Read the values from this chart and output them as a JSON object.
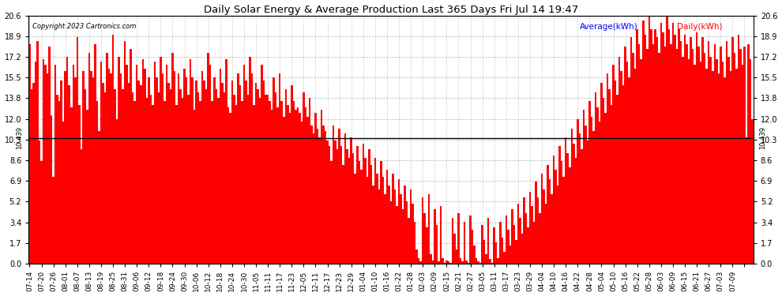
{
  "title": "Daily Solar Energy & Average Production Last 365 Days Fri Jul 14 19:47",
  "copyright": "Copyright 2023 Cartronics.com",
  "average_value": 10.439,
  "average_line_color": "#000000",
  "bar_color": "#ff0000",
  "background_color": "#ffffff",
  "plot_bg_color": "#ffffff",
  "grid_color": "#888888",
  "yticks": [
    0.0,
    1.7,
    3.4,
    5.2,
    6.9,
    8.6,
    10.3,
    12.0,
    13.8,
    15.5,
    17.2,
    18.9,
    20.6
  ],
  "ylim": [
    0.0,
    20.6
  ],
  "legend_avg_label": "Average(kWh)",
  "legend_daily_label": "Daily(kWh)",
  "legend_avg_color": "#0000ff",
  "legend_daily_color": "#ff0000",
  "x_labels": [
    "07-14",
    "07-20",
    "07-26",
    "08-01",
    "08-07",
    "08-13",
    "08-19",
    "08-25",
    "08-31",
    "09-06",
    "09-12",
    "09-18",
    "09-24",
    "09-30",
    "10-06",
    "10-12",
    "10-18",
    "10-24",
    "10-30",
    "11-05",
    "11-11",
    "11-17",
    "11-23",
    "12-05",
    "12-11",
    "12-17",
    "12-23",
    "12-29",
    "01-04",
    "01-10",
    "01-16",
    "01-22",
    "01-28",
    "02-03",
    "02-09",
    "02-15",
    "02-21",
    "02-27",
    "03-05",
    "03-11",
    "03-17",
    "03-23",
    "03-29",
    "04-04",
    "04-10",
    "04-16",
    "04-22",
    "04-28",
    "05-04",
    "05-10",
    "05-16",
    "05-22",
    "05-28",
    "06-03",
    "06-09",
    "06-15",
    "06-21",
    "06-27",
    "07-03",
    "07-09"
  ],
  "num_bars": 365,
  "bar_values": [
    18.2,
    14.5,
    15.0,
    16.8,
    18.5,
    10.2,
    8.5,
    17.0,
    16.5,
    15.8,
    18.0,
    12.3,
    7.2,
    16.5,
    14.0,
    13.5,
    15.2,
    11.8,
    16.0,
    17.2,
    14.8,
    13.0,
    16.5,
    15.5,
    18.8,
    13.2,
    9.5,
    16.0,
    14.5,
    12.8,
    17.5,
    16.0,
    15.5,
    18.2,
    13.5,
    11.0,
    16.8,
    15.0,
    14.2,
    17.5,
    16.2,
    15.8,
    19.0,
    14.5,
    12.0,
    17.2,
    15.8,
    14.5,
    18.5,
    16.5,
    15.0,
    17.8,
    14.2,
    13.5,
    16.5,
    15.2,
    14.8,
    17.0,
    16.2,
    13.8,
    15.5,
    14.0,
    13.2,
    16.8,
    15.5,
    14.2,
    17.2,
    15.8,
    13.5,
    16.5,
    15.0,
    14.5,
    17.5,
    16.0,
    13.2,
    15.8,
    14.5,
    13.8,
    16.2,
    15.5,
    14.0,
    17.0,
    15.5,
    12.8,
    15.2,
    14.2,
    13.5,
    16.0,
    15.2,
    14.5,
    17.5,
    16.5,
    13.5,
    15.5,
    14.5,
    13.8,
    16.2,
    15.0,
    14.2,
    17.0,
    13.0,
    12.5,
    15.2,
    14.0,
    13.2,
    15.8,
    14.8,
    13.5,
    16.5,
    15.2,
    14.0,
    17.2,
    15.8,
    13.2,
    15.0,
    14.5,
    13.8,
    16.5,
    15.2,
    14.0,
    14.0,
    13.5,
    12.8,
    15.5,
    14.2,
    13.0,
    15.8,
    13.5,
    12.2,
    14.5,
    13.2,
    12.5,
    14.8,
    13.5,
    12.8,
    13.0,
    12.5,
    11.8,
    14.2,
    13.0,
    12.2,
    13.8,
    11.5,
    10.8,
    12.5,
    11.2,
    10.5,
    12.8,
    11.5,
    11.0,
    10.2,
    9.8,
    8.5,
    11.5,
    10.2,
    9.5,
    11.2,
    9.8,
    8.2,
    10.8,
    9.5,
    8.8,
    10.5,
    9.2,
    7.5,
    9.8,
    8.5,
    7.8,
    10.0,
    8.8,
    7.2,
    9.5,
    8.2,
    6.5,
    8.8,
    7.5,
    6.2,
    8.5,
    7.2,
    5.8,
    7.8,
    6.5,
    5.2,
    7.5,
    6.2,
    4.8,
    7.0,
    5.8,
    4.5,
    6.5,
    5.2,
    3.8,
    6.2,
    5.0,
    3.5,
    1.2,
    0.5,
    0.2,
    5.5,
    4.2,
    3.0,
    5.8,
    0.8,
    0.3,
    4.5,
    3.2,
    0.2,
    4.8,
    0.5,
    0.1,
    0.3,
    0.2,
    0.1,
    3.8,
    2.5,
    1.2,
    4.2,
    0.5,
    0.2,
    3.5,
    0.3,
    0.1,
    4.0,
    2.8,
    1.5,
    0.5,
    0.2,
    0.1,
    3.2,
    2.0,
    0.8,
    3.8,
    0.4,
    0.1,
    3.0,
    1.8,
    0.5,
    3.5,
    2.2,
    1.0,
    4.0,
    2.8,
    1.5,
    4.5,
    3.2,
    2.0,
    5.0,
    3.8,
    2.5,
    5.5,
    4.2,
    3.0,
    6.0,
    4.8,
    3.5,
    6.8,
    5.5,
    4.2,
    7.5,
    6.2,
    5.0,
    8.2,
    7.0,
    5.8,
    9.0,
    7.8,
    6.5,
    9.8,
    8.5,
    7.2,
    10.5,
    9.2,
    8.0,
    11.2,
    10.0,
    8.8,
    12.0,
    10.8,
    9.5,
    12.8,
    11.5,
    10.2,
    13.5,
    12.2,
    11.0,
    14.2,
    13.0,
    11.8,
    15.0,
    13.8,
    12.5,
    15.8,
    14.5,
    13.2,
    16.5,
    15.2,
    14.0,
    17.2,
    16.0,
    14.8,
    18.0,
    16.8,
    15.5,
    18.8,
    17.5,
    16.2,
    19.5,
    18.2,
    17.0,
    20.2,
    19.0,
    17.8,
    20.6,
    19.5,
    18.2,
    19.5,
    18.8,
    17.5,
    20.0,
    19.2,
    18.0,
    20.5,
    19.5,
    18.2,
    20.0,
    19.0,
    17.8,
    19.5,
    18.5,
    17.2,
    19.0,
    18.2,
    17.0,
    18.8,
    17.8,
    16.5,
    19.2,
    18.0,
    16.8,
    18.8,
    17.5,
    16.2,
    18.5,
    17.2,
    16.0,
    18.2,
    17.0,
    15.8,
    18.0,
    16.8,
    15.5,
    18.5,
    17.2,
    16.0,
    18.8,
    17.5,
    16.2,
    19.0,
    17.8,
    16.5,
    18.0,
    10.5,
    18.2,
    17.0,
    12.0
  ]
}
